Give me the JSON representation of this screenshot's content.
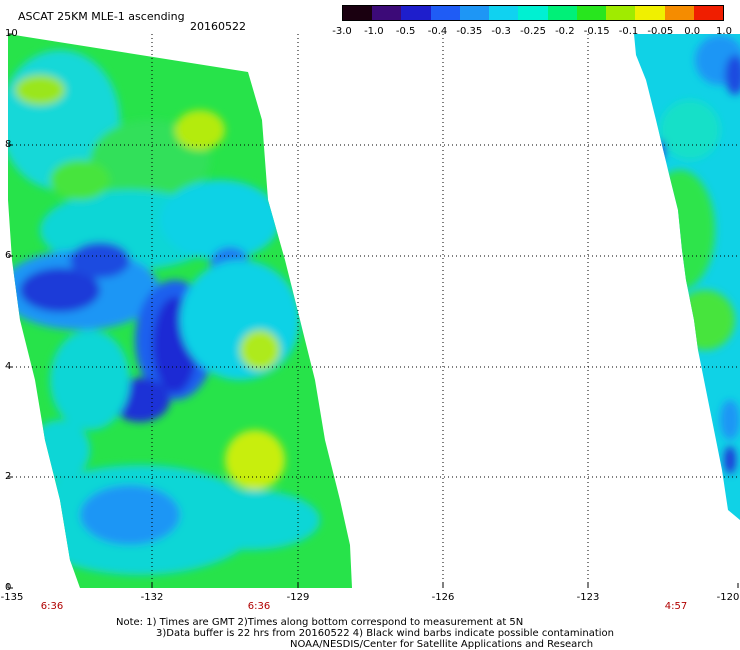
{
  "header": {
    "title": "ASCAT 25KM MLE-1 ascending",
    "date": "20160522"
  },
  "colorbar": {
    "labels": [
      "-3.0",
      "-1.0",
      "-0.5",
      "-0.4",
      "-0.35",
      "-0.3",
      "-0.25",
      "-0.2",
      "-0.15",
      "-0.1",
      "-0.05",
      "0.0",
      "1.0"
    ],
    "colors": [
      "#1a0010",
      "#3c0a78",
      "#1e1ecc",
      "#1f5cf5",
      "#1e96f5",
      "#10d2f0",
      "#00f0d2",
      "#00f078",
      "#28e61e",
      "#a0eb00",
      "#f0f000",
      "#f58c00",
      "#f01e00"
    ]
  },
  "map": {
    "y_ticks": [
      "10",
      "8",
      "6",
      "4",
      "2",
      "0"
    ],
    "x_ticks": [
      "-135",
      "-132",
      "-129",
      "-126",
      "-123",
      "-120"
    ],
    "pass_times": [
      "6:36",
      "6:36",
      "4:57"
    ]
  },
  "notes": {
    "line1": "Note: 1) Times are GMT 2)Times along bottom correspond to measurement at 5N",
    "line2": "3)Data buffer is 22 hrs from 20160522 4) Black wind barbs indicate possible contamination",
    "line3": "NOAA/NESDIS/Center for Satellite Applications and Research"
  }
}
